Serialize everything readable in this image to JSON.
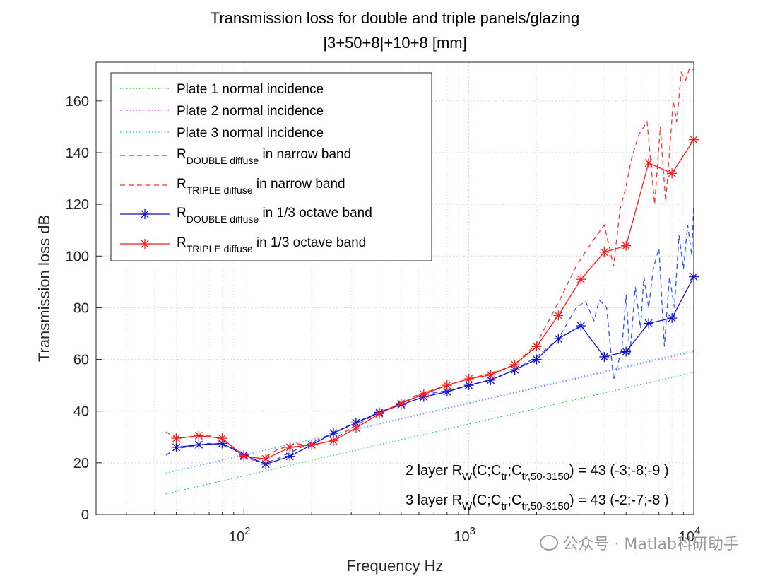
{
  "chart_data": {
    "type": "line",
    "title": "Transmission loss for double and triple panels/glazing",
    "subtitle": "|3+50+8|+10+8 [mm]",
    "xlabel": "Frequency Hz",
    "ylabel": "Transmission loss dB",
    "xscale": "log",
    "xlim": [
      22,
      10000
    ],
    "ylim": [
      0,
      175
    ],
    "yticks": [
      "0",
      "20",
      "40",
      "60",
      "80",
      "100",
      "120",
      "140",
      "160"
    ],
    "xticks": [
      {
        "base": "10",
        "exp": "2"
      },
      {
        "base": "10",
        "exp": "3"
      },
      {
        "base": "10",
        "exp": "4"
      }
    ],
    "grid": true,
    "legend_position": "top-left",
    "legend": [
      {
        "id": "plate1",
        "text": "Plate 1 normal incidence"
      },
      {
        "id": "plate2",
        "text": "Plate 2 normal incidence"
      },
      {
        "id": "plate3",
        "text": "Plate 3 normal incidence"
      },
      {
        "id": "double_narrow",
        "main": "R",
        "sub": "DOUBLE diffuse",
        "tail": " in narrow band"
      },
      {
        "id": "triple_narrow",
        "main": "R",
        "sub": "TRIPLE diffuse",
        "tail": " in narrow band"
      },
      {
        "id": "double_oct",
        "main": "R",
        "sub": "DOUBLE diffuse",
        "tail": " in 1/3 octave band"
      },
      {
        "id": "triple_oct",
        "main": "R",
        "sub": "TRIPLE diffuse",
        "tail": " in 1/3 octave band"
      }
    ],
    "series": [
      {
        "id": "plate1",
        "style": "dotted",
        "color": "#2ecc40",
        "x": [
          45,
          10000
        ],
        "y": [
          8,
          55
        ]
      },
      {
        "id": "plate2",
        "style": "dotted",
        "color": "#e040fb",
        "x": [
          45,
          10000
        ],
        "y": [
          16,
          63
        ]
      },
      {
        "id": "plate3",
        "style": "dotted",
        "color": "#33ccff",
        "x": [
          45,
          10000
        ],
        "y": [
          16,
          63.5
        ]
      },
      {
        "id": "double_narrow",
        "style": "dashed",
        "color": "#3050ff",
        "x": [
          45,
          50,
          60,
          70,
          80,
          90,
          100,
          110,
          120,
          140,
          170,
          200,
          250,
          300,
          400,
          500,
          600,
          800,
          1000,
          1300,
          1600,
          2000,
          2500,
          3000,
          3300,
          3600,
          3800,
          4100,
          4400,
          4600,
          4800,
          5000,
          5200,
          5500,
          5800,
          6000,
          6300,
          6600,
          7000,
          7400,
          7800,
          8200,
          8600,
          9000,
          9400,
          9800,
          10000
        ],
        "y": [
          23,
          25.5,
          26.5,
          27.5,
          27,
          25.5,
          23.5,
          21.5,
          19.5,
          21.5,
          25,
          28,
          31.5,
          35,
          39.5,
          43,
          46,
          48,
          50,
          52.5,
          56,
          61,
          68,
          80,
          82.5,
          75,
          83,
          80,
          52,
          58,
          65,
          85,
          62,
          88,
          72,
          92,
          80,
          95,
          103,
          65,
          92,
          80,
          108,
          95,
          112,
          100,
          120
        ]
      },
      {
        "id": "triple_narrow",
        "style": "dashed",
        "color": "#ff3030",
        "x": [
          45,
          50,
          60,
          70,
          80,
          90,
          100,
          110,
          120,
          140,
          170,
          200,
          250,
          300,
          400,
          500,
          600,
          800,
          1000,
          1300,
          1600,
          2000,
          2500,
          3000,
          3500,
          4000,
          4400,
          4700,
          5000,
          5300,
          5700,
          6200,
          6700,
          7100,
          7500,
          7800,
          8100,
          8400,
          8800,
          9200,
          9600,
          10000
        ],
        "y": [
          32,
          29.5,
          30,
          30.5,
          29,
          26,
          22.5,
          21,
          21.5,
          25,
          27.5,
          26.5,
          29,
          33.5,
          39.5,
          43,
          46.5,
          50,
          52.5,
          55,
          58,
          66,
          82,
          96,
          105,
          112,
          96,
          118,
          127,
          138,
          147,
          152,
          120,
          150,
          121,
          140,
          160,
          152,
          171,
          168,
          173,
          172
        ]
      },
      {
        "id": "double_oct",
        "style": "solid-star",
        "color": "#1010d0",
        "x": [
          50,
          63,
          80,
          100,
          125,
          160,
          200,
          250,
          315,
          400,
          500,
          630,
          800,
          1000,
          1250,
          1600,
          2000,
          2500,
          3150,
          4000,
          5000,
          6300,
          8000,
          10000
        ],
        "y": [
          26,
          27,
          27.5,
          23,
          19.5,
          22.5,
          27,
          31.5,
          35.5,
          39.5,
          42.5,
          45.5,
          47.5,
          50,
          52,
          56,
          60,
          68,
          73,
          61,
          63,
          74,
          76,
          92
        ]
      },
      {
        "id": "triple_oct",
        "style": "solid-star",
        "color": "#ff1a1a",
        "x": [
          50,
          63,
          80,
          100,
          125,
          160,
          200,
          250,
          315,
          400,
          500,
          630,
          800,
          1000,
          1250,
          1600,
          2000,
          2500,
          3150,
          4000,
          5000,
          6300,
          8000,
          10000
        ],
        "y": [
          29.5,
          30.5,
          29.5,
          22.5,
          21.5,
          26,
          27,
          28.5,
          33.5,
          39,
          43,
          46.5,
          50,
          52.5,
          54,
          58,
          65,
          77,
          91,
          101.5,
          104,
          136,
          132,
          145
        ]
      }
    ],
    "annotations": [
      {
        "id": "two_layer",
        "pre": "2 layer R",
        "sub1": "W",
        "mid1": "(C;C",
        "sub2": "tr",
        "mid2": ";C",
        "sub3": "tr,50-3150",
        "tail": ") = 43 (-3;-8;-9 )"
      },
      {
        "id": "three_layer",
        "pre": "3 layer R",
        "sub1": "W",
        "mid1": "(C;C",
        "sub2": "tr",
        "mid2": ";C",
        "sub3": "tr,50-3150",
        "tail": ") = 43 (-2;-7;-8 )"
      }
    ]
  },
  "watermark": {
    "text": "公众号 · Matlab科研助手"
  }
}
